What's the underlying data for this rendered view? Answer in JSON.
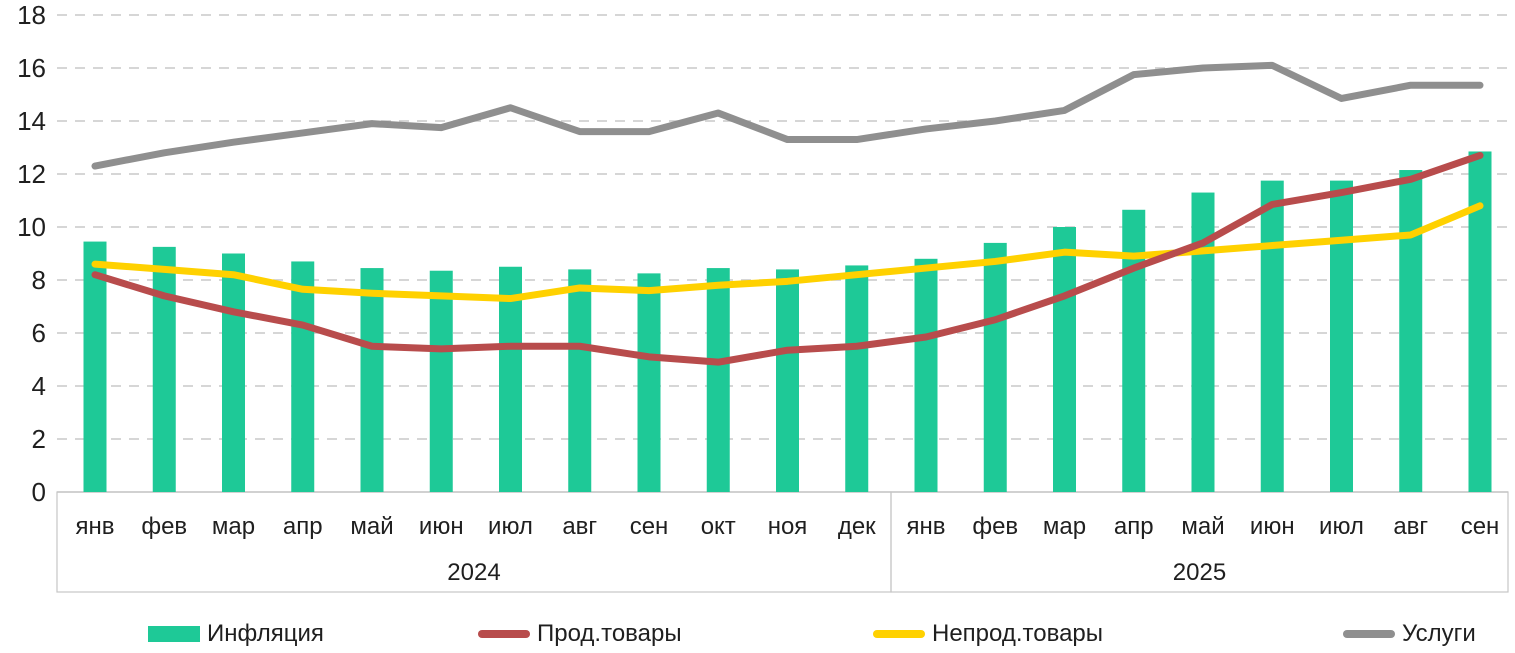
{
  "chart_data": {
    "type": "bar",
    "subtype": "bar+line combo",
    "title": "",
    "xlabel": "",
    "ylabel": "",
    "ylim": [
      0,
      18
    ],
    "ytick_step": 2,
    "grid": "horizontal dashed",
    "legend_position": "bottom",
    "categories": [
      "янв",
      "фев",
      "мар",
      "апр",
      "май",
      "июн",
      "июл",
      "авг",
      "сен",
      "окт",
      "ноя",
      "дек",
      "янв",
      "фев",
      "мар",
      "апр",
      "май",
      "июн",
      "июл",
      "авг",
      "сен"
    ],
    "x_groups": [
      {
        "label": "2024",
        "from": 0,
        "to": 11
      },
      {
        "label": "2025",
        "from": 12,
        "to": 20
      }
    ],
    "series": [
      {
        "name": "Инфляция",
        "type": "bar",
        "color": "#1ec997",
        "values": [
          9.45,
          9.25,
          9.0,
          8.7,
          8.45,
          8.35,
          8.5,
          8.4,
          8.25,
          8.45,
          8.4,
          8.55,
          8.8,
          9.4,
          10.0,
          10.65,
          11.3,
          11.75,
          11.75,
          12.15,
          12.85
        ]
      },
      {
        "name": "Прод.товары",
        "type": "line",
        "color": "#b84c4c",
        "values": [
          8.2,
          7.4,
          6.8,
          6.3,
          5.5,
          5.4,
          5.5,
          5.5,
          5.1,
          4.9,
          5.35,
          5.5,
          5.85,
          6.5,
          7.4,
          8.45,
          9.4,
          10.85,
          11.3,
          11.8,
          12.7
        ]
      },
      {
        "name": "Непрод.товары",
        "type": "line",
        "color": "#ffd100",
        "values": [
          8.6,
          8.4,
          8.2,
          7.65,
          7.5,
          7.4,
          7.3,
          7.7,
          7.6,
          7.8,
          7.95,
          8.2,
          8.45,
          8.7,
          9.05,
          8.9,
          9.1,
          9.3,
          9.5,
          9.7,
          10.8
        ]
      },
      {
        "name": "Услуги",
        "type": "line",
        "color": "#8f8f8f",
        "values": [
          12.3,
          12.8,
          13.2,
          13.55,
          13.9,
          13.75,
          14.5,
          13.6,
          13.6,
          14.3,
          13.3,
          13.3,
          13.7,
          14.0,
          14.4,
          15.75,
          16.0,
          16.1,
          14.85,
          15.35,
          15.35
        ]
      }
    ]
  }
}
